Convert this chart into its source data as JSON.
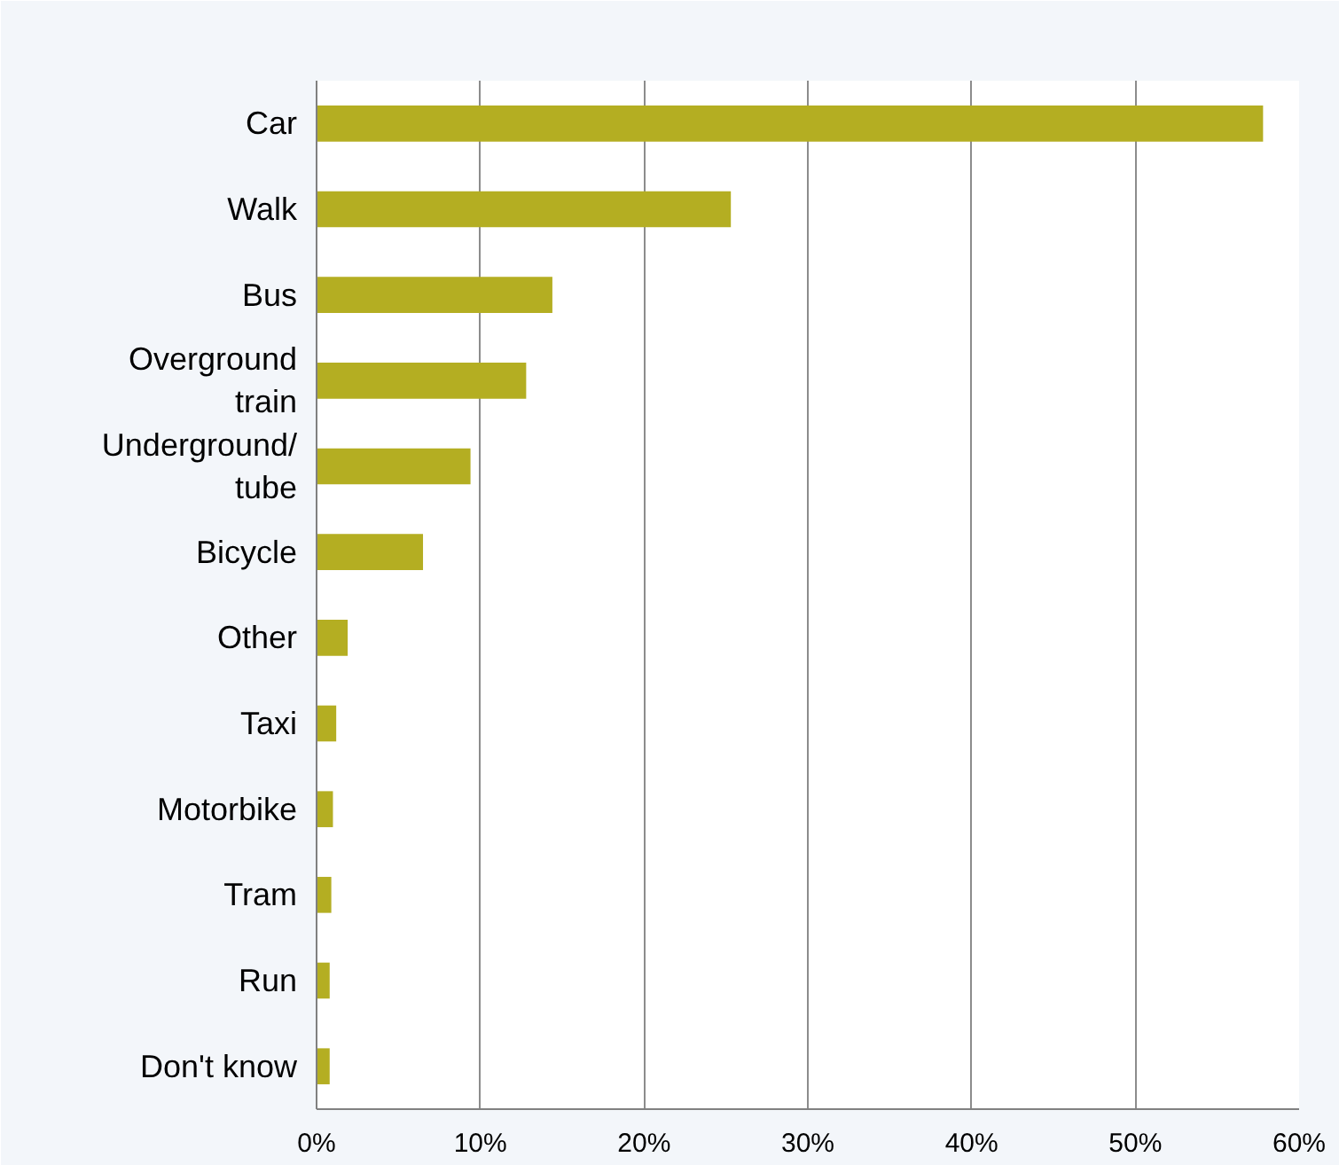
{
  "chart_data": {
    "type": "bar",
    "orientation": "horizontal",
    "categories": [
      "Car",
      "Walk",
      "Bus",
      "Overground train",
      "Underground/tube",
      "Bicycle",
      "Other",
      "Taxi",
      "Motorbike",
      "Tram",
      "Run",
      "Don't know"
    ],
    "values": [
      57.8,
      25.3,
      14.4,
      12.8,
      9.4,
      6.5,
      1.9,
      1.2,
      1.0,
      0.9,
      0.8,
      0.8
    ],
    "color": "#b4ae22",
    "xlim": [
      0,
      60
    ],
    "xticks": [
      {
        "value": 0,
        "label": "0%"
      },
      {
        "value": 10,
        "label": "10%"
      },
      {
        "value": 20,
        "label": "20%"
      },
      {
        "value": 30,
        "label": "30%"
      },
      {
        "value": 40,
        "label": "40%"
      },
      {
        "value": 50,
        "label": "50%"
      },
      {
        "value": 60,
        "label": "60%"
      }
    ],
    "grid": "x"
  }
}
